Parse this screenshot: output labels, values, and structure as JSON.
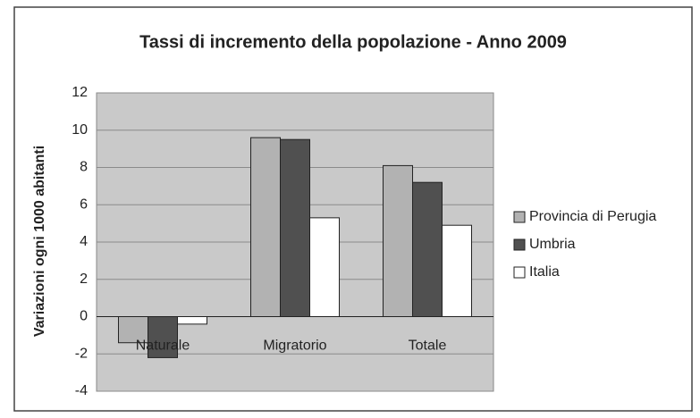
{
  "chart_data": {
    "type": "bar",
    "title": "Tassi di incremento della popolazione - Anno 2009",
    "y_label": "Variazioni ogni 1000 abitanti",
    "categories": [
      "Naturale",
      "Migratorio",
      "Totale"
    ],
    "series": [
      {
        "name": "Provincia di Perugia",
        "color": "#b2b2b2",
        "values": [
          -1.4,
          9.6,
          8.1
        ]
      },
      {
        "name": "Umbria",
        "color": "#505050",
        "values": [
          -2.2,
          9.5,
          7.2
        ]
      },
      {
        "name": "Italia",
        "color": "#ffffff",
        "values": [
          -0.4,
          5.3,
          4.9
        ]
      }
    ],
    "ylim": [
      -4,
      12
    ],
    "yticks": [
      -4,
      -2,
      0,
      2,
      4,
      6,
      8,
      10,
      12
    ],
    "grid": true,
    "legend": "right"
  }
}
